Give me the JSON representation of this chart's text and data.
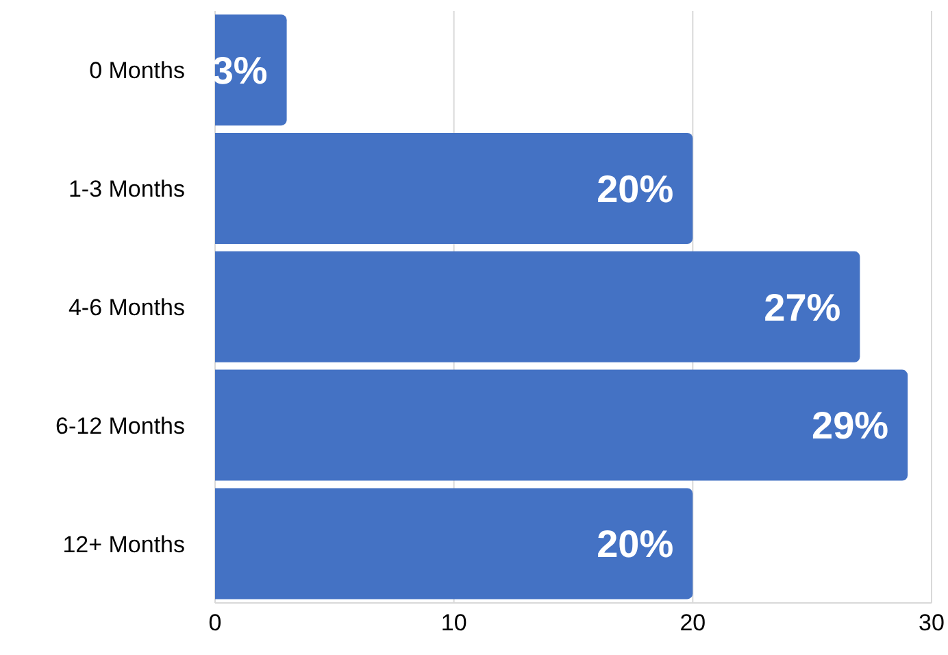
{
  "chart_data": {
    "type": "bar",
    "orientation": "horizontal",
    "categories": [
      "0 Months",
      "1-3 Months",
      "4-6 Months",
      "6-12 Months",
      "12+ Months"
    ],
    "values": [
      3,
      20,
      27,
      29,
      20
    ],
    "value_labels": [
      "3%",
      "20%",
      "27%",
      "29%",
      "20%"
    ],
    "color": "#4472c4",
    "xlim": [
      0,
      30
    ],
    "xticks": [
      0,
      10,
      20,
      30
    ],
    "grid": "x",
    "legend": false
  }
}
